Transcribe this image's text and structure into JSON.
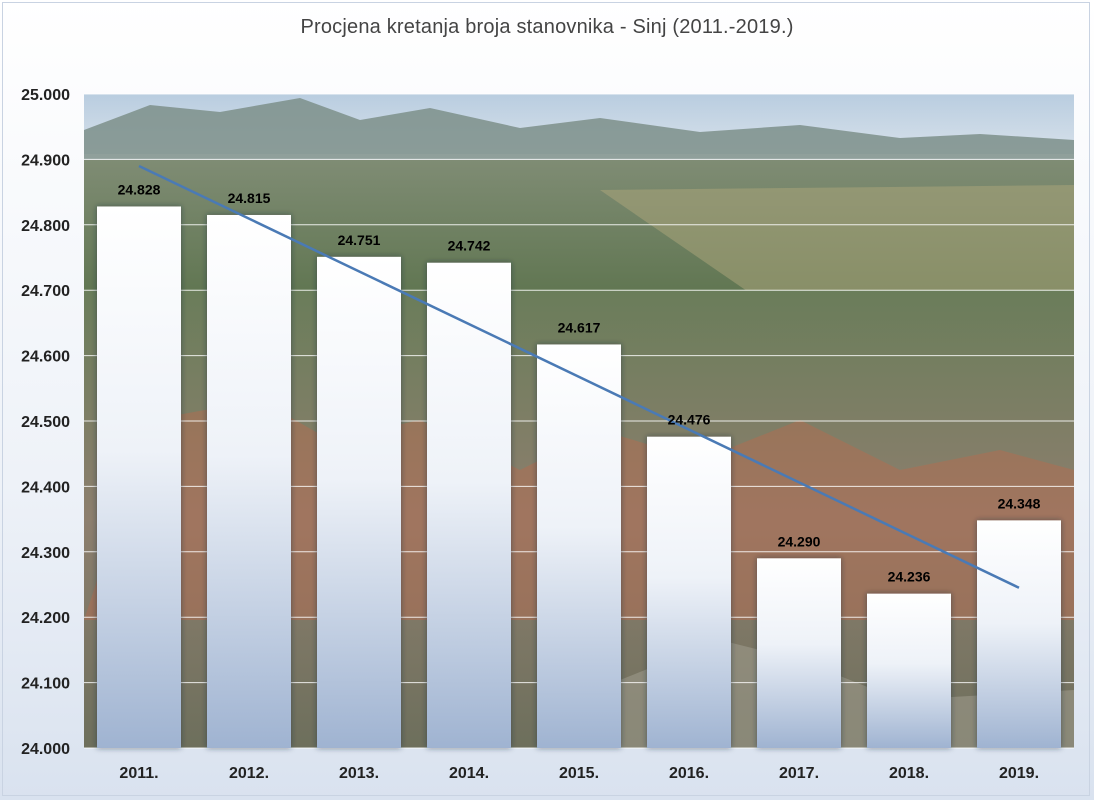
{
  "chart_data": {
    "type": "bar",
    "title": "Procjena kretanja broja stanovnika - Sinj (2011.-2019.)",
    "xlabel": "",
    "ylabel": "",
    "categories": [
      "2011.",
      "2012.",
      "2013.",
      "2014.",
      "2015.",
      "2016.",
      "2017.",
      "2018.",
      "2019."
    ],
    "values": [
      24828,
      24815,
      24751,
      24742,
      24617,
      24476,
      24290,
      24236,
      24348
    ],
    "value_labels": [
      "24.828",
      "24.815",
      "24.751",
      "24.742",
      "24.617",
      "24.476",
      "24.290",
      "24.236",
      "24.348"
    ],
    "ylim": [
      24000,
      25000
    ],
    "yticks": [
      24000,
      24100,
      24200,
      24300,
      24400,
      24500,
      24600,
      24700,
      24800,
      24900,
      25000
    ],
    "ytick_labels": [
      "24.000",
      "24.100",
      "24.200",
      "24.300",
      "24.400",
      "24.500",
      "24.600",
      "24.700",
      "24.800",
      "24.900",
      "25.000"
    ],
    "trendline": {
      "type": "linear",
      "start": 24890,
      "end": 24245
    },
    "grid": true,
    "legend": "none",
    "background": "photo of the town of Sinj and surrounding valley",
    "colors": {
      "bar_fill_top": "#ffffff",
      "bar_fill_bottom": "#9fb3d1",
      "trend_line": "#4a7ab5",
      "grid": "#ffffff"
    }
  }
}
